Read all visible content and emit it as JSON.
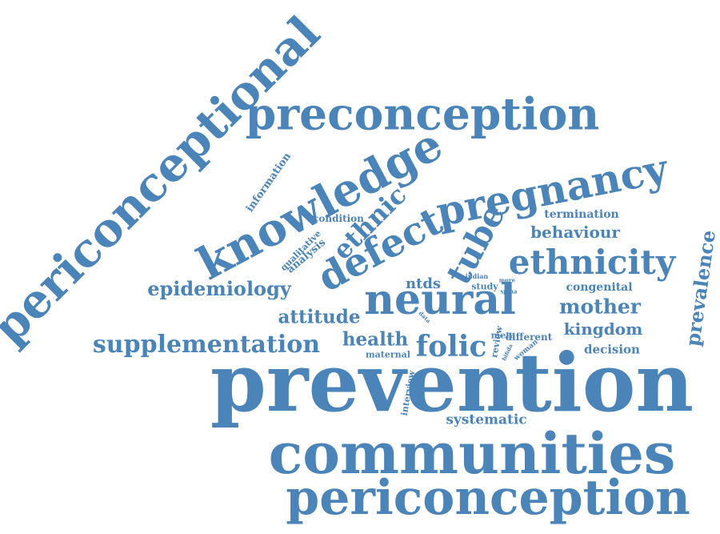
{
  "word_cloud": {
    "color": "#4a84b8",
    "words": [
      "prevention",
      "communities",
      "periconception",
      "periconceptional",
      "preconception",
      "knowledge",
      "pregnancy",
      "neural",
      "defect",
      "tube",
      "ethnicity",
      "ethnic",
      "folic",
      "supplementation",
      "epidemiology",
      "attitude",
      "health",
      "mother",
      "kingdom",
      "behaviour",
      "prevalence",
      "decision",
      "systematic",
      "termination",
      "congenital",
      "information",
      "condition",
      "qualitative",
      "analysis",
      "ntds",
      "study",
      "indian",
      "more",
      "spina",
      "data",
      "meta",
      "different",
      "review",
      "bifida",
      "woman",
      "maternal",
      "interview"
    ]
  }
}
